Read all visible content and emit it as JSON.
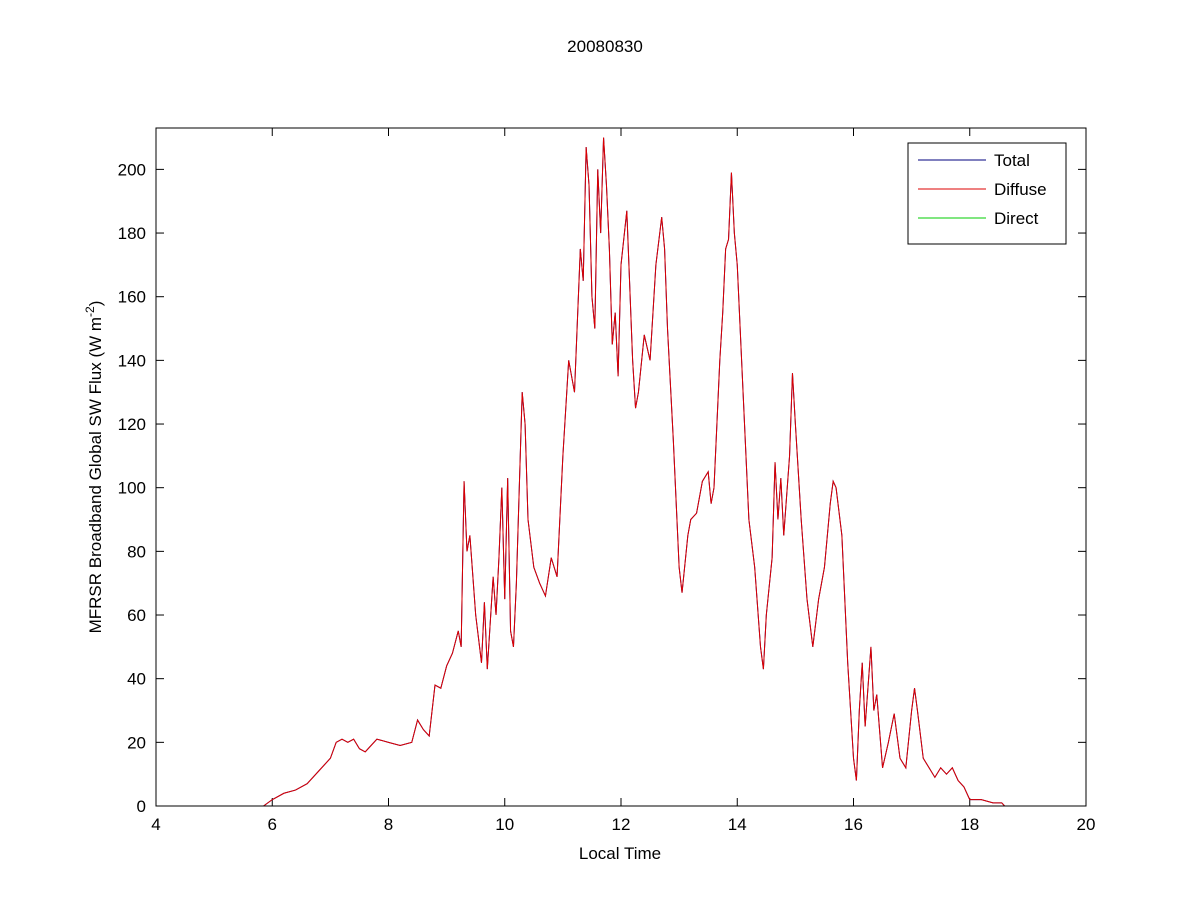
{
  "chart_data": {
    "type": "line",
    "title": "20080830",
    "xlabel": "Local Time",
    "ylabel": {
      "text": "MFRSR Broadband Global SW Flux (W m",
      "superscript": "-2",
      "suffix": ")"
    },
    "xlim": [
      4,
      20
    ],
    "xticks": [
      4,
      6,
      8,
      10,
      12,
      14,
      16,
      18,
      20
    ],
    "ylim": [
      0,
      213
    ],
    "yticks": [
      0,
      20,
      40,
      60,
      80,
      100,
      120,
      140,
      160,
      180,
      200
    ],
    "legend": "upper right",
    "series": [
      {
        "name": "Total",
        "color": "#00007f",
        "x": [
          5.85,
          6.0,
          6.2,
          6.4,
          6.6,
          6.8,
          7.0,
          7.1,
          7.2,
          7.3,
          7.4,
          7.5,
          7.6,
          7.7,
          7.8,
          8.0,
          8.2,
          8.4,
          8.5,
          8.6,
          8.7,
          8.8,
          8.9,
          9.0,
          9.1,
          9.2,
          9.25,
          9.3,
          9.35,
          9.4,
          9.5,
          9.6,
          9.65,
          9.7,
          9.8,
          9.85,
          9.9,
          9.95,
          10.0,
          10.05,
          10.1,
          10.15,
          10.2,
          10.3,
          10.35,
          10.4,
          10.5,
          10.6,
          10.7,
          10.8,
          10.9,
          11.0,
          11.1,
          11.2,
          11.3,
          11.35,
          11.4,
          11.45,
          11.5,
          11.55,
          11.6,
          11.65,
          11.7,
          11.75,
          11.8,
          11.85,
          11.9,
          11.95,
          12.0,
          12.1,
          12.2,
          12.25,
          12.3,
          12.4,
          12.5,
          12.6,
          12.7,
          12.75,
          12.8,
          12.9,
          13.0,
          13.05,
          13.15,
          13.2,
          13.3,
          13.4,
          13.5,
          13.55,
          13.6,
          13.7,
          13.75,
          13.8,
          13.85,
          13.9,
          13.95,
          14.0,
          14.1,
          14.2,
          14.3,
          14.4,
          14.45,
          14.5,
          14.6,
          14.65,
          14.7,
          14.75,
          14.8,
          14.9,
          14.95,
          15.0,
          15.1,
          15.2,
          15.3,
          15.4,
          15.5,
          15.6,
          15.65,
          15.7,
          15.8,
          15.9,
          16.0,
          16.05,
          16.1,
          16.15,
          16.2,
          16.3,
          16.35,
          16.4,
          16.5,
          16.6,
          16.7,
          16.8,
          16.9,
          17.0,
          17.05,
          17.1,
          17.2,
          17.3,
          17.4,
          17.5,
          17.6,
          17.7,
          17.8,
          17.9,
          18.0,
          18.2,
          18.4,
          18.55,
          18.6
        ],
        "values": [
          0,
          2,
          4,
          5,
          7,
          11,
          15,
          20,
          21,
          20,
          21,
          18,
          17,
          19,
          21,
          20,
          19,
          20,
          27,
          24,
          22,
          38,
          37,
          44,
          48,
          55,
          50,
          102,
          80,
          85,
          60,
          45,
          64,
          43,
          72,
          60,
          78,
          100,
          65,
          103,
          55,
          50,
          70,
          130,
          120,
          90,
          75,
          70,
          66,
          78,
          72,
          110,
          140,
          130,
          175,
          165,
          207,
          195,
          160,
          150,
          200,
          180,
          210,
          195,
          175,
          145,
          155,
          135,
          170,
          187,
          140,
          125,
          130,
          148,
          140,
          170,
          185,
          175,
          150,
          115,
          75,
          67,
          85,
          90,
          92,
          102,
          105,
          95,
          100,
          140,
          155,
          175,
          178,
          199,
          180,
          170,
          130,
          90,
          75,
          50,
          43,
          60,
          78,
          108,
          90,
          103,
          85,
          110,
          136,
          120,
          90,
          65,
          50,
          65,
          75,
          95,
          102,
          100,
          85,
          45,
          15,
          8,
          30,
          45,
          25,
          50,
          30,
          35,
          12,
          20,
          29,
          15,
          12,
          30,
          37,
          30,
          15,
          12,
          9,
          12,
          10,
          12,
          8,
          6,
          2,
          2,
          1,
          1,
          0
        ]
      },
      {
        "name": "Diffuse",
        "color": "#dd0000",
        "x": [
          5.85,
          6.0,
          6.2,
          6.4,
          6.6,
          6.8,
          7.0,
          7.1,
          7.2,
          7.3,
          7.4,
          7.5,
          7.6,
          7.7,
          7.8,
          8.0,
          8.2,
          8.4,
          8.5,
          8.6,
          8.7,
          8.8,
          8.9,
          9.0,
          9.1,
          9.2,
          9.25,
          9.3,
          9.35,
          9.4,
          9.5,
          9.6,
          9.65,
          9.7,
          9.8,
          9.85,
          9.9,
          9.95,
          10.0,
          10.05,
          10.1,
          10.15,
          10.2,
          10.3,
          10.35,
          10.4,
          10.5,
          10.6,
          10.7,
          10.8,
          10.9,
          11.0,
          11.1,
          11.2,
          11.3,
          11.35,
          11.4,
          11.45,
          11.5,
          11.55,
          11.6,
          11.65,
          11.7,
          11.75,
          11.8,
          11.85,
          11.9,
          11.95,
          12.0,
          12.1,
          12.2,
          12.25,
          12.3,
          12.4,
          12.5,
          12.6,
          12.7,
          12.75,
          12.8,
          12.9,
          13.0,
          13.05,
          13.15,
          13.2,
          13.3,
          13.4,
          13.5,
          13.55,
          13.6,
          13.7,
          13.75,
          13.8,
          13.85,
          13.9,
          13.95,
          14.0,
          14.1,
          14.2,
          14.3,
          14.4,
          14.45,
          14.5,
          14.6,
          14.65,
          14.7,
          14.75,
          14.8,
          14.9,
          14.95,
          15.0,
          15.1,
          15.2,
          15.3,
          15.4,
          15.5,
          15.6,
          15.65,
          15.7,
          15.8,
          15.9,
          16.0,
          16.05,
          16.1,
          16.15,
          16.2,
          16.3,
          16.35,
          16.4,
          16.5,
          16.6,
          16.7,
          16.8,
          16.9,
          17.0,
          17.05,
          17.1,
          17.2,
          17.3,
          17.4,
          17.5,
          17.6,
          17.7,
          17.8,
          17.9,
          18.0,
          18.2,
          18.4,
          18.55,
          18.6
        ],
        "values": [
          0,
          2,
          4,
          5,
          7,
          11,
          15,
          20,
          21,
          20,
          21,
          18,
          17,
          19,
          21,
          20,
          19,
          20,
          27,
          24,
          22,
          38,
          37,
          44,
          48,
          55,
          50,
          102,
          80,
          85,
          60,
          45,
          64,
          43,
          72,
          60,
          78,
          100,
          65,
          103,
          55,
          50,
          70,
          130,
          120,
          90,
          75,
          70,
          66,
          78,
          72,
          110,
          140,
          130,
          175,
          165,
          207,
          195,
          160,
          150,
          200,
          180,
          210,
          195,
          175,
          145,
          155,
          135,
          170,
          187,
          140,
          125,
          130,
          148,
          140,
          170,
          185,
          175,
          150,
          115,
          75,
          67,
          85,
          90,
          92,
          102,
          105,
          95,
          100,
          140,
          155,
          175,
          178,
          199,
          180,
          170,
          130,
          90,
          75,
          50,
          43,
          60,
          78,
          108,
          90,
          103,
          85,
          110,
          136,
          120,
          90,
          65,
          50,
          65,
          75,
          95,
          102,
          100,
          85,
          45,
          15,
          8,
          30,
          45,
          25,
          50,
          30,
          35,
          12,
          20,
          29,
          15,
          12,
          30,
          37,
          30,
          15,
          12,
          9,
          12,
          10,
          12,
          8,
          6,
          2,
          2,
          1,
          1,
          0
        ]
      },
      {
        "name": "Direct",
        "color": "#00cc00",
        "x": [
          5.85,
          18.6
        ],
        "values": [
          0,
          0
        ]
      }
    ]
  }
}
